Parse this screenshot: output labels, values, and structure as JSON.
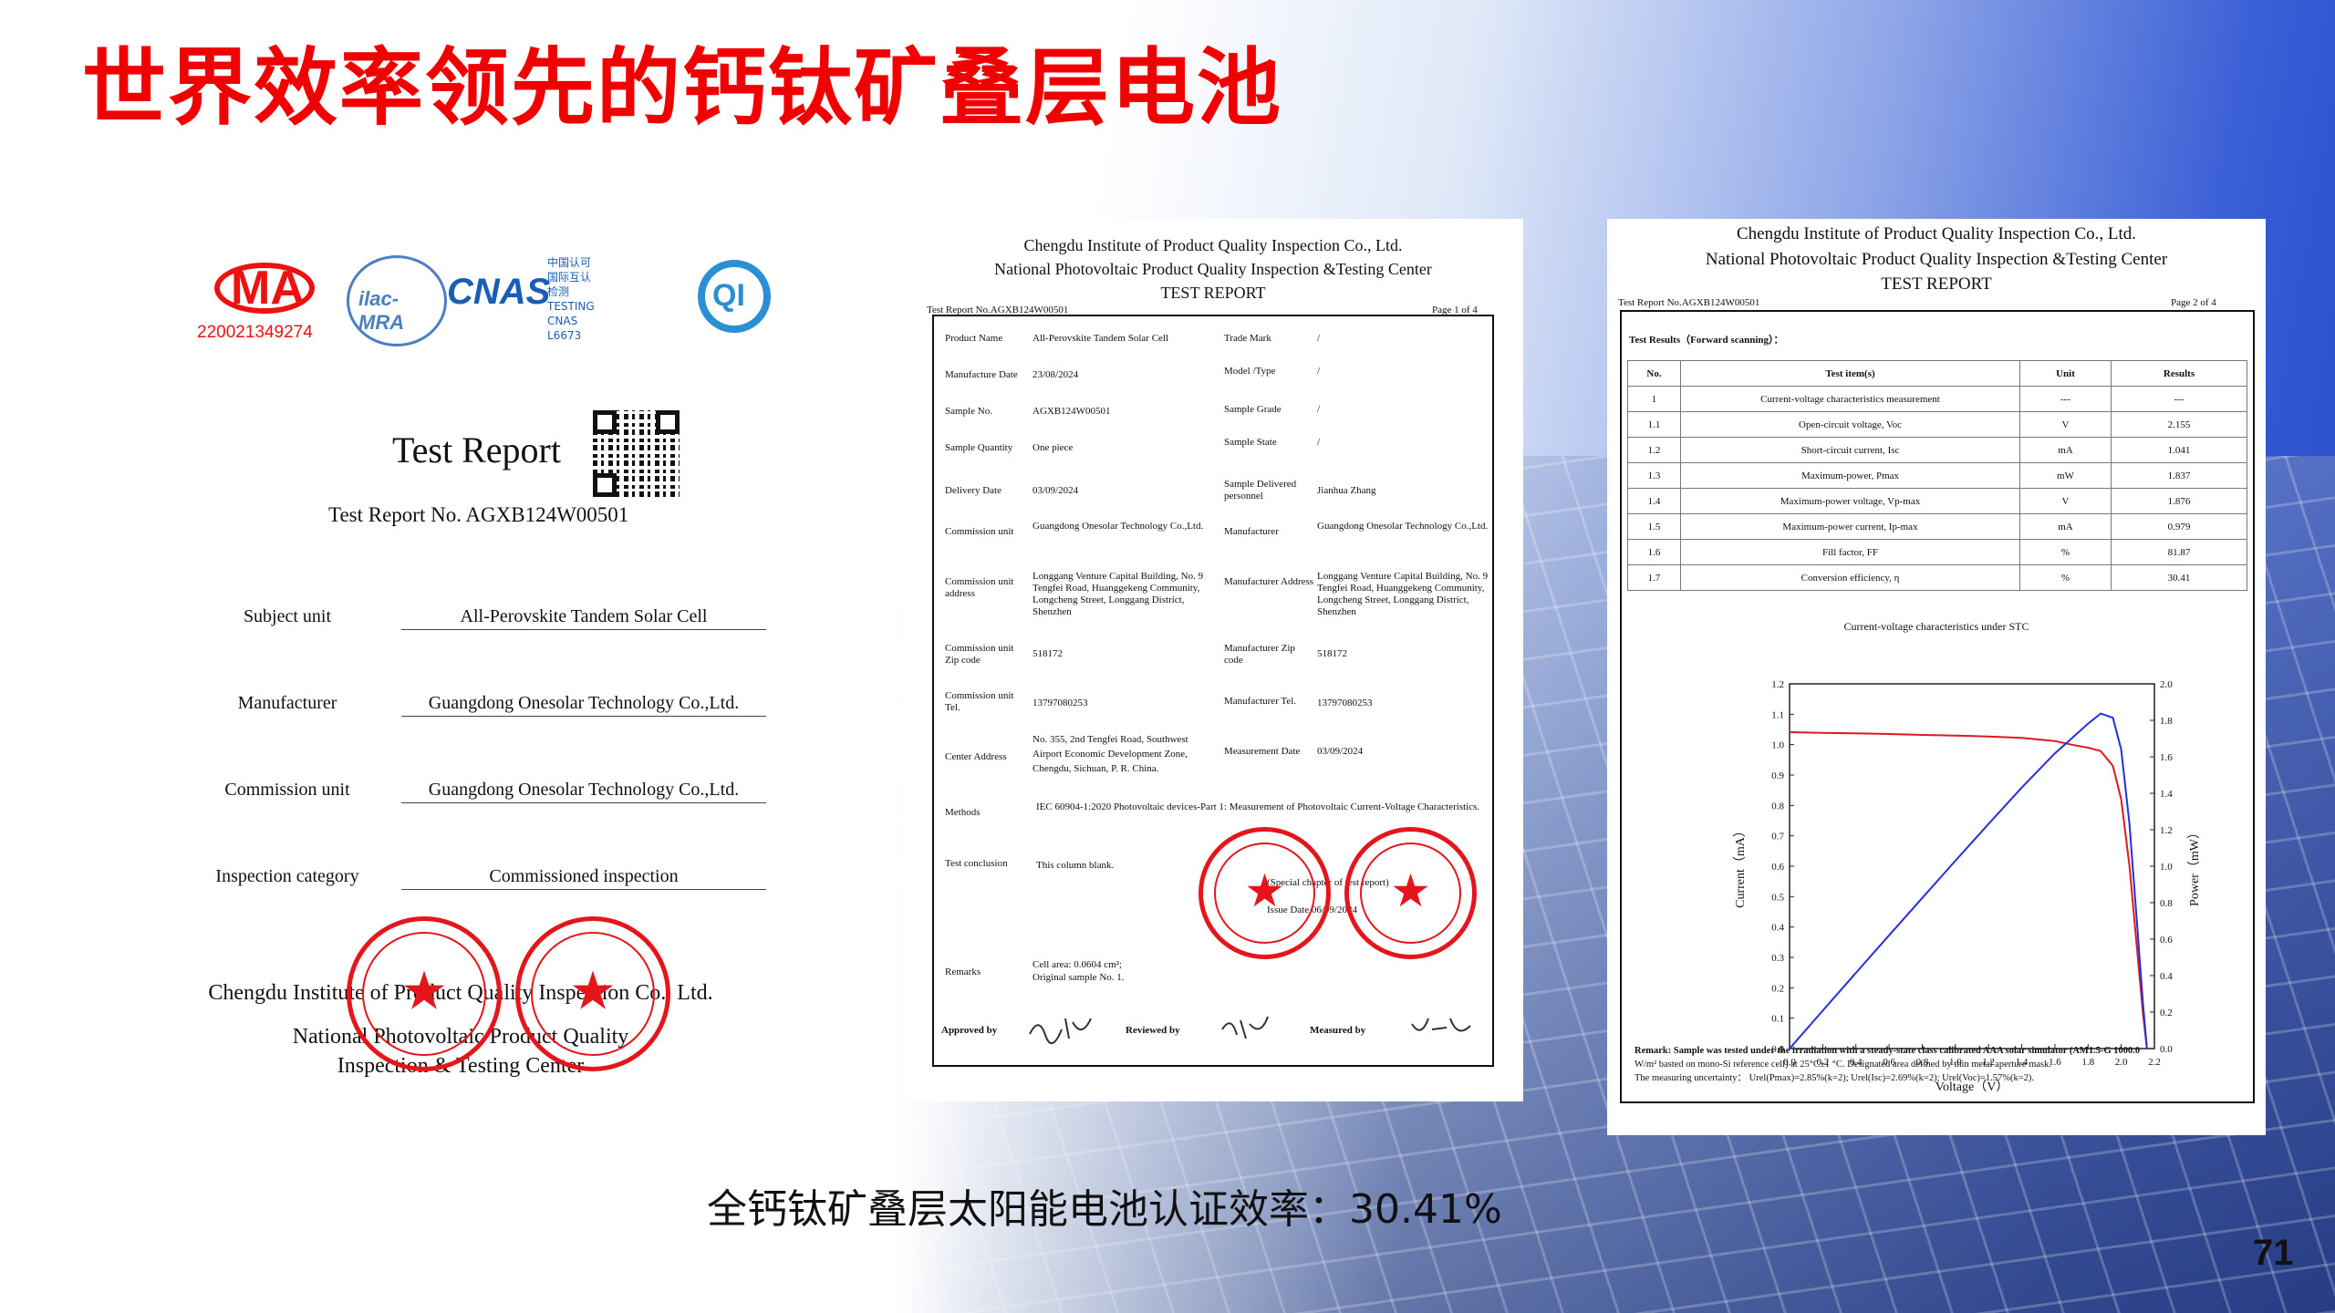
{
  "slide": {
    "title": "世界效率领先的钙钛矿叠层电池",
    "caption": "全钙钛矿叠层太阳能电池认证效率：30.41%",
    "page_number": "71",
    "colors": {
      "title": "#f00000",
      "seal": "#e4161b",
      "voltage_curve": "#e0191f",
      "power_curve": "#2230d8"
    }
  },
  "cover": {
    "logos": {
      "cma_text": "MA",
      "cma_number": "220021349274",
      "ilac_text": "ilac-MRA",
      "cnas_text": "CNAS",
      "cnas_sub": [
        "中国认可",
        "国际互认",
        "检测",
        "TESTING",
        "CNAS L6673"
      ],
      "qi_text": "QI"
    },
    "title": "Test Report",
    "report_no": "Test Report No. AGXB124W00501",
    "fields": [
      {
        "label": "Subject unit",
        "value": "All-Perovskite Tandem Solar Cell"
      },
      {
        "label": "Manufacturer",
        "value": "Guangdong Onesolar Technology Co.,Ltd."
      },
      {
        "label": "Commission unit",
        "value": "Guangdong Onesolar Technology Co.,Ltd."
      },
      {
        "label": "Inspection category",
        "value": "Commissioned inspection"
      }
    ],
    "institution": [
      "Chengdu Institute of Product Quality Inspection Co., Ltd.",
      "National Photovoltaic Product Quality",
      "Inspection & Testing Center"
    ]
  },
  "page1": {
    "header": [
      "Chengdu Institute of Product Quality Inspection Co., Ltd.",
      "National Photovoltaic Product Quality Inspection &Testing Center",
      "TEST REPORT"
    ],
    "report_no": "Test Report No.AGXB124W00501",
    "page": "Page 1 of  4",
    "left": [
      {
        "label": "Product Name",
        "value": "All-Perovskite Tandem Solar Cell"
      },
      {
        "label": "Manufacture Date",
        "value": "23/08/2024"
      },
      {
        "label": "Sample No.",
        "value": "AGXB124W00501"
      },
      {
        "label": "Sample Quantity",
        "value": "One piece"
      },
      {
        "label": "Delivery Date",
        "value": "03/09/2024"
      },
      {
        "label": "Commission unit",
        "value": "Guangdong Onesolar Technology Co.,Ltd."
      },
      {
        "label": "Commission unit address",
        "value": "Longgang Venture Capital Building, No. 9 Tengfei Road, Huanggekeng Community, Longcheng Street, Longgang District, Shenzhen"
      },
      {
        "label": "Commission unit Zip code",
        "value": "518172"
      },
      {
        "label": "Commission unit Tel.",
        "value": "13797080253"
      },
      {
        "label": "Center Address",
        "value": "No. 355, 2nd Tengfei Road, Southwest Airport Economic Development Zone, Chengdu, Sichuan, P. R. China."
      }
    ],
    "right": [
      {
        "label": "Trade Mark",
        "value": "/"
      },
      {
        "label": "Model /Type",
        "value": "/"
      },
      {
        "label": "Sample Grade",
        "value": "/"
      },
      {
        "label": "Sample State",
        "value": "/"
      },
      {
        "label": "Sample Delivered personnel",
        "value": "Jianhua Zhang"
      },
      {
        "label": "Manufacturer",
        "value": "Guangdong Onesolar Technology Co.,Ltd."
      },
      {
        "label": "Manufacturer Address",
        "value": "Longgang Venture Capital Building, No. 9 Tengfei Road, Huanggekeng Community, Longcheng Street, Longgang District, Shenzhen"
      },
      {
        "label": "Manufacturer Zip code",
        "value": "518172"
      },
      {
        "label": "Manufacturer Tel.",
        "value": "13797080253"
      },
      {
        "label": "Measurement Date",
        "value": "03/09/2024"
      }
    ],
    "methods_label": "Methods",
    "methods": "IEC 60904-1:2020 Photovoltaic devices-Part 1: Measurement of Photovoltaic Current-Voltage Characteristics.",
    "conclusion_label": "Test conclusion",
    "conclusion": "This column blank.",
    "special_chapter": "(Special chapter of test report)",
    "issue_date": "Issue Date  06/09/2024",
    "remarks_label": "Remarks",
    "remarks": [
      "Cell area: 0.0604 cm²;",
      "Original sample No.  1."
    ],
    "approved_by": "Approved by",
    "reviewed_by": "Reviewed by",
    "measured_by": "Measured by"
  },
  "page2": {
    "header": [
      "Chengdu Institute of Product Quality Inspection Co., Ltd.",
      "National Photovoltaic Product Quality Inspection &Testing Center",
      "TEST REPORT"
    ],
    "report_no": "Test Report No.AGXB124W00501",
    "page": "Page 2 of  4",
    "section": "Test Results（Forward scanning）：",
    "table_headers": [
      "No.",
      "Test item(s)",
      "Unit",
      "Results"
    ],
    "rows": [
      [
        "1",
        "Current-voltage characteristics measurement",
        "---",
        "---"
      ],
      [
        "1.1",
        "Open-circuit voltage, Voc",
        "V",
        "2.155"
      ],
      [
        "1.2",
        "Short-circuit current, Isc",
        "mA",
        "1.041"
      ],
      [
        "1.3",
        "Maximum-power, Pmax",
        "mW",
        "1.837"
      ],
      [
        "1.4",
        "Maximum-power voltage, Vp-max",
        "V",
        "1.876"
      ],
      [
        "1.5",
        "Maximum-power current, Ip-max",
        "mA",
        "0.979"
      ],
      [
        "1.6",
        "Fill factor, FF",
        "%",
        "81.87"
      ],
      [
        "1.7",
        "Conversion efficiency, η",
        "%",
        "30.41"
      ]
    ],
    "remark": [
      "Remark: Sample was tested under the irradiation with a steady-state class calibrated AAA solar simulator (AM1.5-G 1000.0",
      "W/m² basted on mono-Si reference cell) at 25°C±1 °C. Designated area defined by thin metal aperture mask.",
      "The measuring uncertainty： Urel(Pmax)=2.85%(k=2); Urel(Isc)=2.69%(k=2); Urel(Voc)=1.57%(k=2)."
    ]
  },
  "chart_data": {
    "type": "line",
    "title": "Current-voltage characteristics under STC",
    "xlabel": "Voltage（V）",
    "ylabel": "Current（mA）",
    "y2label": "Power（mW）",
    "xlim": [
      0,
      2.2
    ],
    "ylim": [
      0,
      1.2
    ],
    "y2lim": [
      0,
      2.0
    ],
    "x_ticks": [
      "0.0",
      "0.2",
      "0.4",
      "0.6",
      "0.8",
      "1.0",
      "1.2",
      "1.4",
      "1.6",
      "1.8",
      "2.0",
      "2.2"
    ],
    "y_ticks": [
      "0.0",
      "0.1",
      "0.2",
      "0.3",
      "0.4",
      "0.5",
      "0.6",
      "0.7",
      "0.8",
      "0.9",
      "1.0",
      "1.1",
      "1.2"
    ],
    "y2_ticks": [
      "0.0",
      "0.2",
      "0.4",
      "0.6",
      "0.8",
      "1.0",
      "1.2",
      "1.4",
      "1.6",
      "1.8",
      "2.0"
    ],
    "series": [
      {
        "axis": "left",
        "color": "#e0191f",
        "x": [
          0,
          0.2,
          0.4,
          0.6,
          0.8,
          1.0,
          1.2,
          1.4,
          1.6,
          1.7,
          1.8,
          1.876,
          1.95,
          2.0,
          2.05,
          2.1,
          2.13,
          2.155
        ],
        "y": [
          1.041,
          1.039,
          1.037,
          1.035,
          1.032,
          1.03,
          1.027,
          1.022,
          1.012,
          1.0,
          0.99,
          0.979,
          0.93,
          0.82,
          0.6,
          0.3,
          0.12,
          0.0
        ]
      },
      {
        "axis": "right",
        "color": "#2230d8",
        "x": [
          0,
          0.2,
          0.4,
          0.6,
          0.8,
          1.0,
          1.2,
          1.4,
          1.6,
          1.7,
          1.8,
          1.876,
          1.95,
          2.0,
          2.05,
          2.1,
          2.13,
          2.155
        ],
        "y": [
          0.0,
          0.208,
          0.415,
          0.621,
          0.826,
          1.03,
          1.232,
          1.431,
          1.619,
          1.7,
          1.782,
          1.837,
          1.814,
          1.64,
          1.23,
          0.63,
          0.256,
          0.0
        ]
      }
    ]
  }
}
